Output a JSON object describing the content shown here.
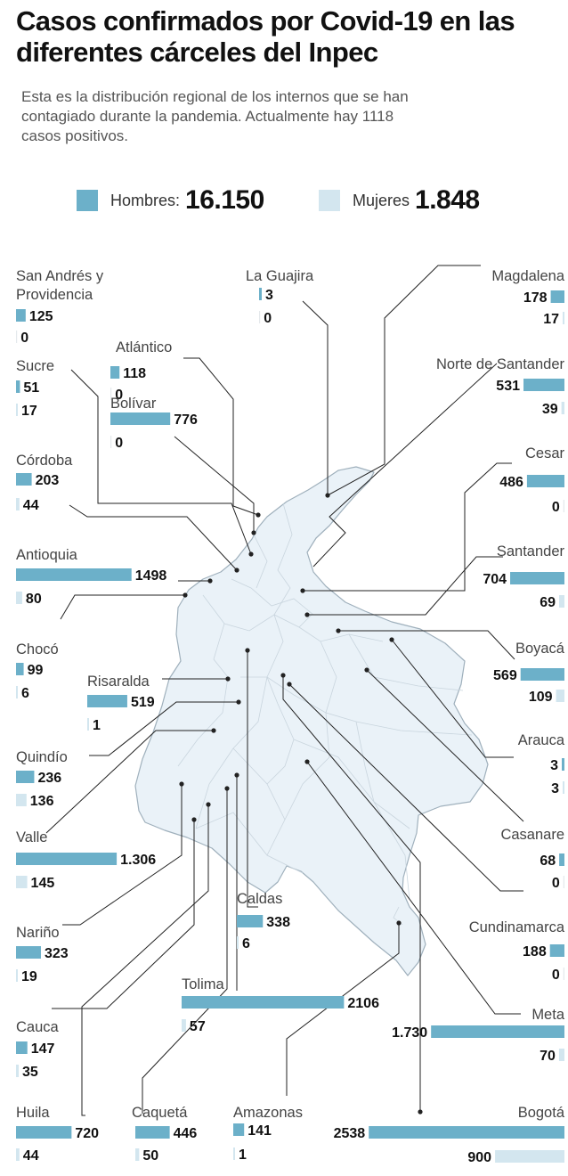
{
  "title": "Casos confirmados por Covid-19 en las diferentes cárceles del Inpec",
  "subtitle": "Esta es la distribución regional de los internos que se han contagiado durante la pandemia. Actualmente hay 1118 casos positivos.",
  "legend": {
    "men_label": "Hombres:",
    "men_total": "16.150",
    "women_label": "Mujeres",
    "women_total": "1.848"
  },
  "colors": {
    "men": "#6cb0c9",
    "women": "#d3e6ef",
    "map_fill": "#eaf2f8",
    "map_stroke": "#9fb0bc",
    "leader": "#222222"
  },
  "chart_data": {
    "type": "bar",
    "title": "Casos confirmados por Covid-19 en las diferentes cárceles del Inpec",
    "series_names": [
      "Hombres",
      "Mujeres"
    ],
    "regions": [
      {
        "name": "San Andrés y Providencia",
        "men": 125,
        "women": 0,
        "men_label": "125",
        "women_label": "0"
      },
      {
        "name": "La Guajira",
        "men": 3,
        "women": 0,
        "men_label": "3",
        "women_label": "0"
      },
      {
        "name": "Magdalena",
        "men": 178,
        "women": 17,
        "men_label": "178",
        "women_label": "17"
      },
      {
        "name": "Atlántico",
        "men": 118,
        "women": 0,
        "men_label": "118",
        "women_label": "0"
      },
      {
        "name": "Sucre",
        "men": 51,
        "women": 17,
        "men_label": "51",
        "women_label": "17"
      },
      {
        "name": "Norte de Santander",
        "men": 531,
        "women": 39,
        "men_label": "531",
        "women_label": "39"
      },
      {
        "name": "Bolívar",
        "men": 776,
        "women": 0,
        "men_label": "776",
        "women_label": "0"
      },
      {
        "name": "Cesar",
        "men": 486,
        "women": 0,
        "men_label": "486",
        "women_label": "0"
      },
      {
        "name": "Córdoba",
        "men": 203,
        "women": 44,
        "men_label": "203",
        "women_label": "44"
      },
      {
        "name": "Antioquia",
        "men": 1498,
        "women": 80,
        "men_label": "1498",
        "women_label": "80"
      },
      {
        "name": "Santander",
        "men": 704,
        "women": 69,
        "men_label": "704",
        "women_label": "69"
      },
      {
        "name": "Chocó",
        "men": 99,
        "women": 6,
        "men_label": "99",
        "women_label": "6"
      },
      {
        "name": "Boyacá",
        "men": 569,
        "women": 109,
        "men_label": "569",
        "women_label": "109"
      },
      {
        "name": "Risaralda",
        "men": 519,
        "women": 1,
        "men_label": "519",
        "women_label": "1"
      },
      {
        "name": "Arauca",
        "men": 3,
        "women": 3,
        "men_label": "3",
        "women_label": "3"
      },
      {
        "name": "Quindío",
        "men": 236,
        "women": 136,
        "men_label": "236",
        "women_label": "136"
      },
      {
        "name": "Casanare",
        "men": 68,
        "women": 0,
        "men_label": "68",
        "women_label": "0"
      },
      {
        "name": "Valle",
        "men": 1306,
        "women": 145,
        "men_label": "1.306",
        "women_label": "145"
      },
      {
        "name": "Caldas",
        "men": 338,
        "women": 6,
        "men_label": "338",
        "women_label": "6"
      },
      {
        "name": "Nariño",
        "men": 323,
        "women": 19,
        "men_label": "323",
        "women_label": "19"
      },
      {
        "name": "Cundinamarca",
        "men": 188,
        "women": 0,
        "men_label": "188",
        "women_label": "0"
      },
      {
        "name": "Tolima",
        "men": 2106,
        "women": 57,
        "men_label": "2106",
        "women_label": "57"
      },
      {
        "name": "Meta",
        "men": 1730,
        "women": 70,
        "men_label": "1.730",
        "women_label": "70"
      },
      {
        "name": "Cauca",
        "men": 147,
        "women": 35,
        "men_label": "147",
        "women_label": "35"
      },
      {
        "name": "Huila",
        "men": 720,
        "women": 44,
        "men_label": "720",
        "women_label": "44"
      },
      {
        "name": "Caquetá",
        "men": 446,
        "women": 50,
        "men_label": "446",
        "women_label": "50"
      },
      {
        "name": "Amazonas",
        "men": 141,
        "women": 1,
        "men_label": "141",
        "women_label": "1"
      },
      {
        "name": "Bogotá",
        "men": 2538,
        "women": 900,
        "men_label": "2538",
        "women_label": "900"
      }
    ]
  }
}
